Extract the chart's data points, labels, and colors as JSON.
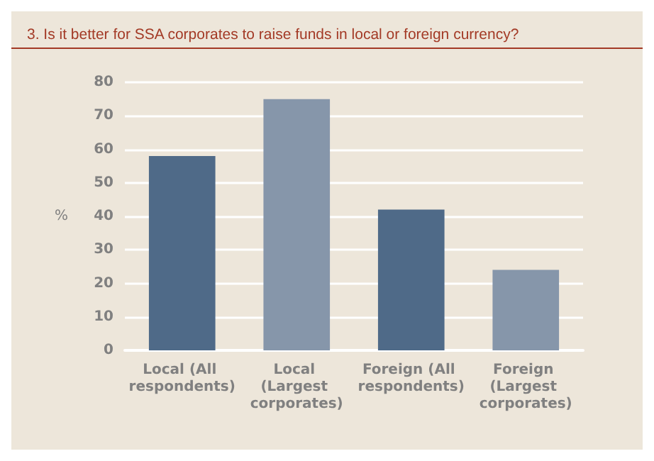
{
  "chart_data": {
    "type": "bar",
    "title": "3. Is it better for SSA corporates to raise funds in local or foreign currency?",
    "ylabel": "%",
    "categories": [
      "Local (All respondents)",
      "Local (Largest corporates)",
      "Foreign (All respondents)",
      "Foreign (Largest corporates)"
    ],
    "values": [
      58,
      75,
      42,
      24
    ],
    "colors": [
      "#4f6a88",
      "#8696aa",
      "#4f6a88",
      "#8696aa"
    ],
    "ylim": [
      0,
      80
    ],
    "yticks": [
      0,
      10,
      20,
      30,
      40,
      50,
      60,
      70,
      80
    ],
    "grid": "y"
  }
}
